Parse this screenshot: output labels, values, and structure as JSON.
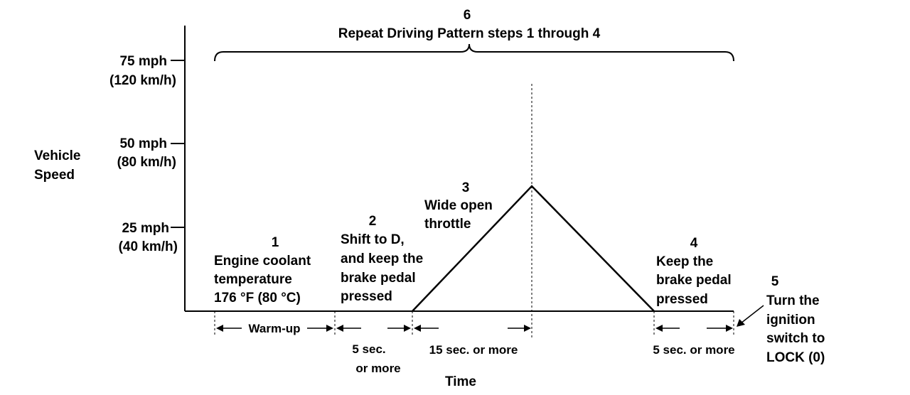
{
  "title": {
    "step_number": "6",
    "text": "Repeat Driving Pattern steps 1 through 4"
  },
  "y_axis": {
    "label_line1": "Vehicle",
    "label_line2": "Speed",
    "ticks": [
      {
        "mph": "75 mph",
        "kmh": "(120 km/h)"
      },
      {
        "mph": "50 mph",
        "kmh": "(80 km/h)"
      },
      {
        "mph": "25 mph",
        "kmh": "(40 km/h)"
      }
    ]
  },
  "x_axis": {
    "label": "Time"
  },
  "steps": {
    "s1": {
      "num": "1",
      "lines": [
        "Engine coolant",
        "temperature",
        "176 °F (80 °C)"
      ]
    },
    "s2": {
      "num": "2",
      "lines": [
        "Shift to D,",
        "and keep the",
        "brake pedal",
        "pressed"
      ]
    },
    "s3": {
      "num": "3",
      "lines": [
        "Wide open",
        "throttle"
      ]
    },
    "s4": {
      "num": "4",
      "lines": [
        "Keep the",
        "brake pedal",
        "pressed"
      ]
    },
    "s5": {
      "num": "5",
      "lines": [
        "Turn the",
        "ignition",
        "switch to",
        "LOCK (0)"
      ]
    }
  },
  "durations": {
    "warmup": "Warm-up",
    "d2_line1": "5 sec.",
    "d2_line2": "or  more",
    "d3": "15 sec. or  more",
    "d4": "5 sec. or  more"
  }
}
